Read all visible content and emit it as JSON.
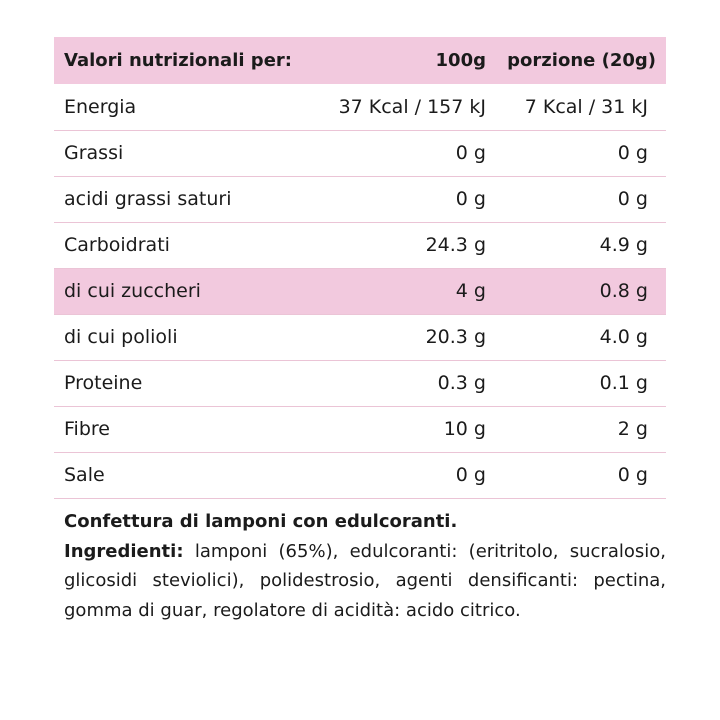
{
  "table": {
    "header": {
      "label": "Valori nutrizionali per:",
      "col_100g": "100g",
      "col_portion": "porzione (20g)"
    },
    "rows": [
      {
        "name": "Energia",
        "per100": "37 Kcal / 157 kJ",
        "portion": "7 Kcal / 31 kJ",
        "highlight": false
      },
      {
        "name": "Grassi",
        "per100": "0 g",
        "portion": "0 g",
        "highlight": false
      },
      {
        "name": "acidi grassi saturi",
        "per100": "0 g",
        "portion": "0 g",
        "highlight": false
      },
      {
        "name": "Carboidrati",
        "per100": "24.3 g",
        "portion": "4.9 g",
        "highlight": false
      },
      {
        "name": "di cui zuccheri",
        "per100": "4 g",
        "portion": "0.8 g",
        "highlight": true
      },
      {
        "name": "di cui polioli",
        "per100": "20.3 g",
        "portion": "4.0 g",
        "highlight": false
      },
      {
        "name": "Proteine",
        "per100": "0.3 g",
        "portion": "0.1 g",
        "highlight": false
      },
      {
        "name": "Fibre",
        "per100": "10 g",
        "portion": "2 g",
        "highlight": false
      },
      {
        "name": "Sale",
        "per100": "0 g",
        "portion": "0 g",
        "highlight": false
      }
    ]
  },
  "description": {
    "product": "Confettura di lamponi con edulcoranti.",
    "ingredients_label": "Ingredienti:",
    "ingredients_text": "lamponi (65%), edulcoranti: (eritritolo, sucralosio, glicosidi steviolici), polidestrosio, agenti densificanti: pectina, gomma di guar, regolatore di acidità: acido citrico."
  },
  "colors": {
    "highlight": "#f2c9de",
    "divider": "#ebc4d6",
    "text": "#1b1b1b"
  }
}
